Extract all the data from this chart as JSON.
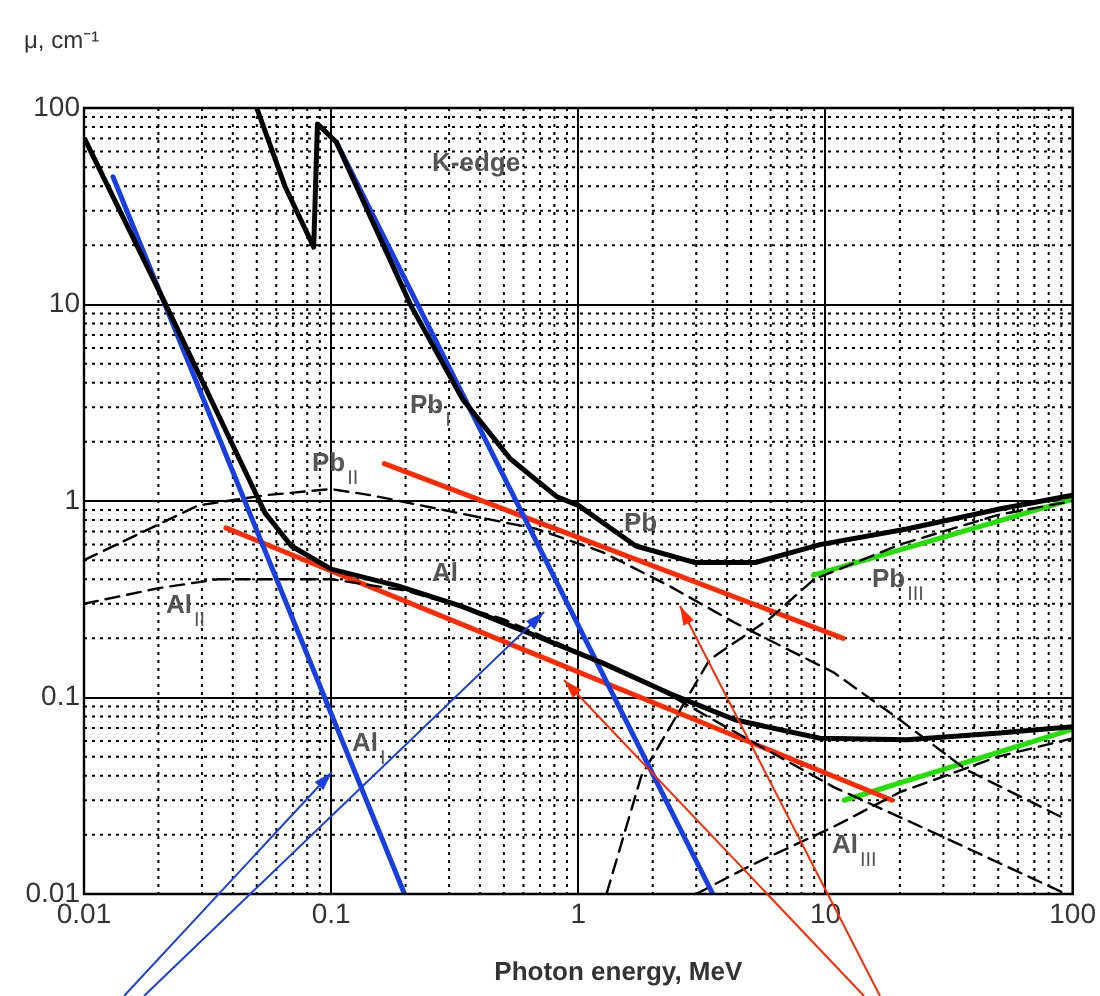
{
  "chart_data": {
    "type": "line",
    "xlabel": "Photon energy, MeV",
    "ylabel": "μ, cm⁻¹",
    "log": "xy",
    "grid": true,
    "legend": false,
    "marker": "none",
    "xlim": [
      0.01,
      100
    ],
    "ylim": [
      0.01,
      100
    ],
    "xticks": [
      0.01,
      0.1,
      1,
      10,
      100
    ],
    "yticks": [
      0.01,
      0.1,
      1,
      10,
      100
    ],
    "series": [
      {
        "name": "Pb",
        "color": "#000000",
        "line_style": "solid",
        "x": [
          0.05,
          0.065,
          0.085,
          0.088,
          0.105,
          0.21,
          0.34,
          0.53,
          0.82,
          1.0,
          1.71,
          2.97,
          5.2,
          9.5,
          21.3,
          50.5,
          100
        ],
        "values": [
          100,
          40,
          19.6,
          83,
          67,
          9.9,
          3.3,
          1.64,
          1.05,
          0.95,
          0.59,
          0.486,
          0.486,
          0.6,
          0.72,
          0.91,
          1.07
        ]
      },
      {
        "name": "Al",
        "color": "#000000",
        "line_style": "solid",
        "x": [
          0.0101,
          0.0215,
          0.054,
          0.069,
          0.1,
          0.186,
          0.34,
          0.68,
          1.25,
          2.33,
          4.3,
          9.5,
          21.4,
          50.5,
          100
        ],
        "values": [
          69,
          9.9,
          0.87,
          0.59,
          0.45,
          0.37,
          0.29,
          0.205,
          0.15,
          0.105,
          0.077,
          0.062,
          0.061,
          0.066,
          0.071
        ]
      },
      {
        "name": "Pb$_{I}$",
        "color": "#1a3fe0",
        "line_style": "solid",
        "x": [
          0.105,
          3.5
        ],
        "values": [
          67,
          0.01
        ]
      },
      {
        "name": "Al$_{I}$",
        "color": "#1a3fe0",
        "line_style": "solid",
        "x": [
          0.0131,
          0.198
        ],
        "values": [
          44.7,
          0.01
        ]
      },
      {
        "name": "Pb$_{II}$",
        "color": "#000000",
        "line_style": "dashed",
        "x": [
          0.01,
          0.029,
          0.054,
          0.1,
          0.145,
          0.68,
          1.25,
          2.33,
          4.3,
          10.8,
          20,
          37,
          94
        ],
        "values": [
          0.5,
          0.95,
          1.07,
          1.15,
          1.07,
          0.72,
          0.55,
          0.37,
          0.24,
          0.134,
          0.077,
          0.043,
          0.024
        ]
      },
      {
        "name": "Al$_{II}$",
        "color": "#000000",
        "line_style": "dashed",
        "x": [
          0.01,
          0.02,
          0.035,
          0.1,
          0.2,
          0.5,
          1,
          2,
          5,
          10.8,
          27.5,
          94
        ],
        "values": [
          0.3,
          0.36,
          0.4,
          0.4,
          0.35,
          0.25,
          0.17,
          0.115,
          0.06,
          0.035,
          0.0205,
          0.01
        ]
      },
      {
        "name": "Pb$_{III}$",
        "color": "#000000",
        "line_style": "dashed",
        "x": [
          1.3,
          1.8,
          3.4,
          5.9,
          9,
          20,
          50,
          100
        ],
        "values": [
          0.01,
          0.04,
          0.156,
          0.25,
          0.4,
          0.6,
          0.85,
          1.0
        ]
      },
      {
        "name": "Al$_{III}$",
        "color": "#000000",
        "line_style": "dashed",
        "x": [
          3,
          5,
          10.8,
          20,
          50,
          100
        ],
        "values": [
          0.01,
          0.014,
          0.022,
          0.033,
          0.05,
          0.062
        ]
      },
      {
        "color": "#ff2a00",
        "line_style": "solid",
        "x": [
          0.164,
          11.8
        ],
        "values": [
          1.55,
          0.2
        ]
      },
      {
        "color": "#ff2a00",
        "line_style": "solid",
        "x": [
          0.0375,
          18.6
        ],
        "values": [
          0.73,
          0.03
        ]
      },
      {
        "color": "#22e000",
        "line_style": "solid",
        "x": [
          8.94,
          100
        ],
        "values": [
          0.42,
          1.02
        ]
      },
      {
        "color": "#22e000",
        "line_style": "solid",
        "x": [
          11.9,
          100
        ],
        "values": [
          0.03,
          0.069
        ]
      }
    ],
    "annotations": [
      "K-edge"
    ]
  }
}
